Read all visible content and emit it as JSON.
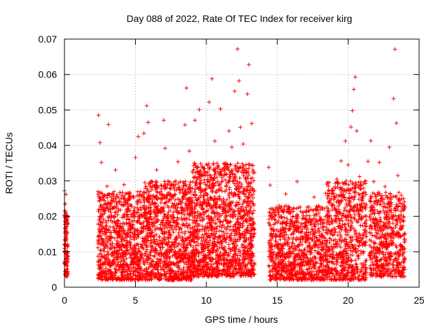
{
  "chart_data": {
    "type": "scatter",
    "title": "Day 088 of 2022, Rate Of TEC Index for receiver kirg",
    "xlabel": "GPS time / hours",
    "ylabel": "ROTI / TECUs",
    "xlim": [
      0,
      25
    ],
    "ylim": [
      0,
      0.07
    ],
    "xticks": [
      0,
      5,
      10,
      15,
      20,
      25
    ],
    "xtick_labels": [
      "0",
      "5",
      "10",
      "15",
      "20",
      "25"
    ],
    "yticks": [
      0,
      0.01,
      0.02,
      0.03,
      0.04,
      0.05,
      0.06,
      0.07
    ],
    "ytick_labels": [
      "0",
      "0.01",
      "0.02",
      "0.03",
      "0.04",
      "0.05",
      "0.06",
      "0.07"
    ],
    "grid": true,
    "marker": "plus",
    "color": "#ff0000",
    "series": [
      {
        "name": "ROTI",
        "points": [
          [
            0.0,
            0.0272
          ],
          [
            0.05,
            0.0235
          ],
          [
            0.08,
            0.0195
          ],
          [
            0.1,
            0.0142
          ],
          [
            0.12,
            0.0098
          ],
          [
            0.15,
            0.0074
          ],
          [
            0.18,
            0.0052
          ],
          [
            0.2,
            0.0118
          ],
          [
            0.22,
            0.0086
          ],
          [
            0.1,
            0.0262
          ],
          [
            0.05,
            0.0165
          ],
          [
            0.15,
            0.0045
          ],
          [
            2.4,
            0.0485
          ],
          [
            2.5,
            0.0408
          ],
          [
            2.6,
            0.0352
          ],
          [
            2.45,
            0.0251
          ],
          [
            2.55,
            0.0145
          ],
          [
            2.7,
            0.0087
          ],
          [
            2.8,
            0.0122
          ],
          [
            3.0,
            0.0285
          ],
          [
            3.1,
            0.0459
          ],
          [
            3.2,
            0.0228
          ],
          [
            3.3,
            0.0154
          ],
          [
            3.4,
            0.0068
          ],
          [
            3.6,
            0.0331
          ],
          [
            3.8,
            0.0215
          ],
          [
            4.0,
            0.0112
          ],
          [
            4.2,
            0.0289
          ],
          [
            4.4,
            0.0178
          ],
          [
            5.0,
            0.0366
          ],
          [
            5.2,
            0.0425
          ],
          [
            5.4,
            0.0218
          ],
          [
            5.6,
            0.0434
          ],
          [
            5.8,
            0.0512
          ],
          [
            5.9,
            0.0465
          ],
          [
            6.0,
            0.0292
          ],
          [
            6.2,
            0.0155
          ],
          [
            6.5,
            0.0331
          ],
          [
            6.8,
            0.0238
          ],
          [
            7.0,
            0.0471
          ],
          [
            7.1,
            0.0392
          ],
          [
            7.3,
            0.0186
          ],
          [
            7.5,
            0.0103
          ],
          [
            7.8,
            0.0262
          ],
          [
            8.0,
            0.0354
          ],
          [
            8.5,
            0.0458
          ],
          [
            8.6,
            0.0562
          ],
          [
            8.8,
            0.0384
          ],
          [
            9.0,
            0.0246
          ],
          [
            9.2,
            0.0471
          ],
          [
            9.5,
            0.0501
          ],
          [
            9.8,
            0.0334
          ],
          [
            10.0,
            0.0213
          ],
          [
            10.2,
            0.0522
          ],
          [
            10.4,
            0.0588
          ],
          [
            10.6,
            0.0412
          ],
          [
            10.8,
            0.0298
          ],
          [
            11.0,
            0.0503
          ],
          [
            11.3,
            0.0347
          ],
          [
            11.6,
            0.0441
          ],
          [
            11.8,
            0.0395
          ],
          [
            12.0,
            0.0553
          ],
          [
            12.2,
            0.0672
          ],
          [
            12.3,
            0.0582
          ],
          [
            12.4,
            0.0451
          ],
          [
            12.6,
            0.0404
          ],
          [
            12.9,
            0.0545
          ],
          [
            13.0,
            0.0628
          ],
          [
            13.2,
            0.0462
          ],
          [
            13.3,
            0.0327
          ],
          [
            14.4,
            0.0338
          ],
          [
            14.5,
            0.0288
          ],
          [
            14.8,
            0.0212
          ],
          [
            15.2,
            0.0147
          ],
          [
            15.6,
            0.0263
          ],
          [
            16.0,
            0.0185
          ],
          [
            16.4,
            0.0298
          ],
          [
            16.8,
            0.0143
          ],
          [
            17.2,
            0.0215
          ],
          [
            17.6,
            0.0254
          ],
          [
            18.0,
            0.0198
          ],
          [
            18.4,
            0.0265
          ],
          [
            18.8,
            0.0186
          ],
          [
            19.2,
            0.0305
          ],
          [
            19.5,
            0.0356
          ],
          [
            19.8,
            0.0412
          ],
          [
            20.0,
            0.0345
          ],
          [
            20.2,
            0.0452
          ],
          [
            20.3,
            0.0498
          ],
          [
            20.4,
            0.0558
          ],
          [
            20.5,
            0.0593
          ],
          [
            20.6,
            0.0441
          ],
          [
            20.8,
            0.0312
          ],
          [
            21.0,
            0.0264
          ],
          [
            21.4,
            0.0355
          ],
          [
            21.6,
            0.0413
          ],
          [
            21.8,
            0.0298
          ],
          [
            22.2,
            0.0352
          ],
          [
            22.6,
            0.0284
          ],
          [
            22.9,
            0.0395
          ],
          [
            23.2,
            0.0532
          ],
          [
            23.3,
            0.0671
          ],
          [
            23.4,
            0.0463
          ],
          [
            23.5,
            0.0315
          ],
          [
            23.8,
            0.0228
          ],
          [
            24.0,
            0.0152
          ]
        ]
      }
    ],
    "dense_bands": [
      {
        "x": [
          0.0,
          0.25
        ],
        "y": [
          0.003,
          0.022
        ],
        "count": 120
      },
      {
        "x": [
          2.35,
          5.5
        ],
        "y": [
          0.002,
          0.027
        ],
        "count": 850
      },
      {
        "x": [
          5.5,
          9.0
        ],
        "y": [
          0.002,
          0.03
        ],
        "count": 1050
      },
      {
        "x": [
          9.0,
          13.4
        ],
        "y": [
          0.003,
          0.035
        ],
        "count": 1450
      },
      {
        "x": [
          14.4,
          18.5
        ],
        "y": [
          0.002,
          0.023
        ],
        "count": 950
      },
      {
        "x": [
          18.5,
          21.3
        ],
        "y": [
          0.002,
          0.03
        ],
        "count": 700
      },
      {
        "x": [
          21.5,
          24.0
        ],
        "y": [
          0.003,
          0.027
        ],
        "count": 600
      }
    ]
  }
}
